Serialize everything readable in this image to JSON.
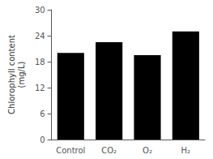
{
  "chart_data": {
    "type": "bar",
    "categories": [
      "Control",
      "CO₂",
      "O₂",
      "H₂"
    ],
    "values": [
      20.0,
      22.5,
      19.5,
      25.0
    ],
    "color": "#000000",
    "ylabel": "Chlorophyll content\n(mg/L)",
    "ylim": [
      0,
      30
    ],
    "yticks": [
      0,
      6,
      12,
      18,
      24,
      30
    ],
    "grid": false
  }
}
